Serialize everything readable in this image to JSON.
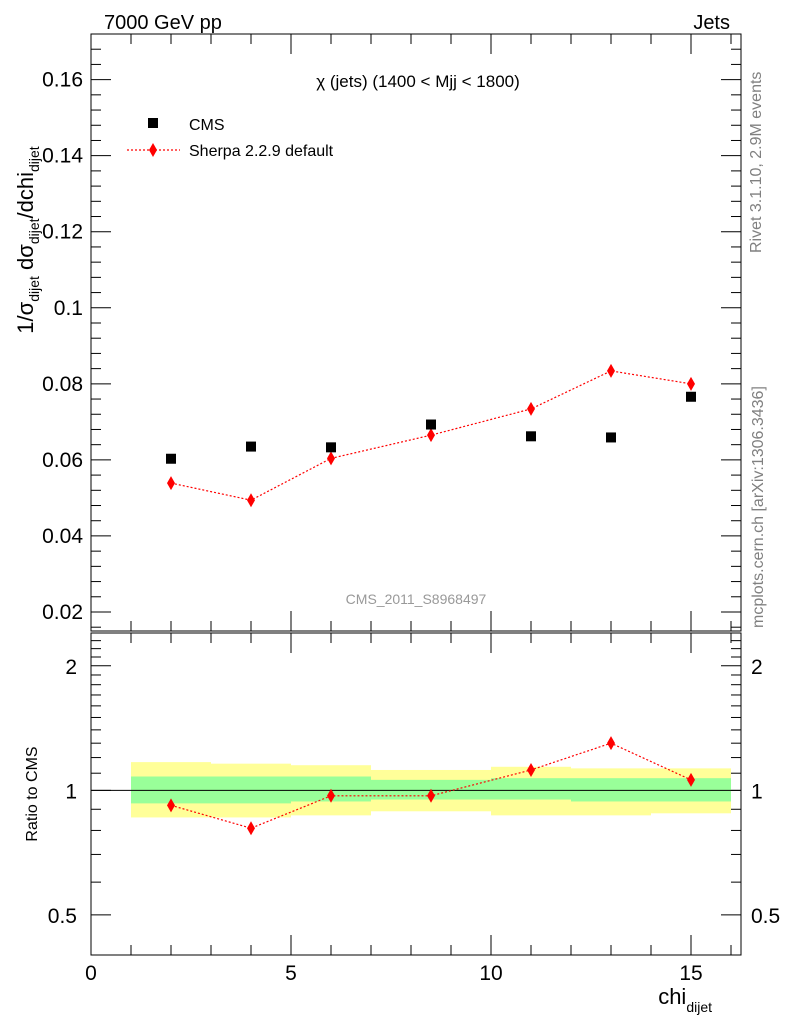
{
  "header": {
    "left": "7000 GeV pp",
    "right": "Jets"
  },
  "side_labels": {
    "rivet": "Rivet 3.1.10,  2.9M events",
    "mcplots": "mcplots.cern.ch [arXiv:1306.3436]"
  },
  "watermark": "CMS_2011_S8968497",
  "main_plot": {
    "title": "χ (jets) (1400 < Mjj < 1800)",
    "ylabel_parts": [
      "1/σ",
      "dijet",
      " dσ",
      "dijet",
      "/dchi",
      "dijet"
    ],
    "yticks": [
      "0.02",
      "0.04",
      "0.06",
      "0.08",
      "0.1",
      "0.12",
      "0.14",
      "0.16"
    ],
    "legend": [
      "CMS",
      "Sherpa 2.2.9 default"
    ]
  },
  "ratio_plot": {
    "ylabel": "Ratio to CMS",
    "yticks": [
      "0.5",
      "1",
      "2"
    ]
  },
  "xaxis": {
    "label": "chi",
    "label_sub": "dijet",
    "ticks": [
      "0",
      "5",
      "10",
      "15"
    ]
  },
  "colors": {
    "data": "#000000",
    "mc": "#ff0000",
    "band_inner": "#99ff99",
    "band_outer": "#ffff99"
  },
  "chart_data": {
    "type": "scatter",
    "title": "χ (jets) (1400 < Mjj < 1800)",
    "xlabel": "chi_dijet",
    "ylabel": "1/σ_dijet dσ_dijet/dchi_dijet",
    "xlim": [
      0,
      16.25
    ],
    "ylim": [
      0.015,
      0.172
    ],
    "ratio_ylim": [
      0.4,
      2.4
    ],
    "ratio_yscale": "log",
    "legend_position": "top-left",
    "bins": [
      [
        1,
        3
      ],
      [
        3,
        5
      ],
      [
        5,
        7
      ],
      [
        7,
        10
      ],
      [
        10,
        12
      ],
      [
        12,
        14
      ],
      [
        14,
        16
      ]
    ],
    "x": [
      2,
      4,
      6,
      8.5,
      11,
      13,
      15
    ],
    "series": [
      {
        "name": "CMS",
        "values": [
          0.0603,
          0.0635,
          0.0633,
          0.0693,
          0.0662,
          0.0659,
          0.0766
        ],
        "marker": "square"
      },
      {
        "name": "Sherpa 2.2.9 default",
        "values": [
          0.0539,
          0.0494,
          0.0604,
          0.0665,
          0.0734,
          0.0834,
          0.08
        ],
        "errors": [
          0.0012,
          0.0012,
          0.0012,
          0.0011,
          0.0014,
          0.0016,
          0.0014
        ],
        "marker": "diamond"
      }
    ],
    "ratio": [
      0.92,
      0.81,
      0.97,
      0.97,
      1.12,
      1.3,
      1.06
    ],
    "ratio_band_inner": [
      [
        0.93,
        1.08
      ],
      [
        0.93,
        1.08
      ],
      [
        0.94,
        1.08
      ],
      [
        0.95,
        1.06
      ],
      [
        0.95,
        1.07
      ],
      [
        0.94,
        1.07
      ],
      [
        0.94,
        1.07
      ]
    ],
    "ratio_band_outer": [
      [
        0.86,
        1.17
      ],
      [
        0.86,
        1.16
      ],
      [
        0.87,
        1.15
      ],
      [
        0.89,
        1.12
      ],
      [
        0.87,
        1.14
      ],
      [
        0.87,
        1.13
      ],
      [
        0.88,
        1.13
      ]
    ]
  }
}
